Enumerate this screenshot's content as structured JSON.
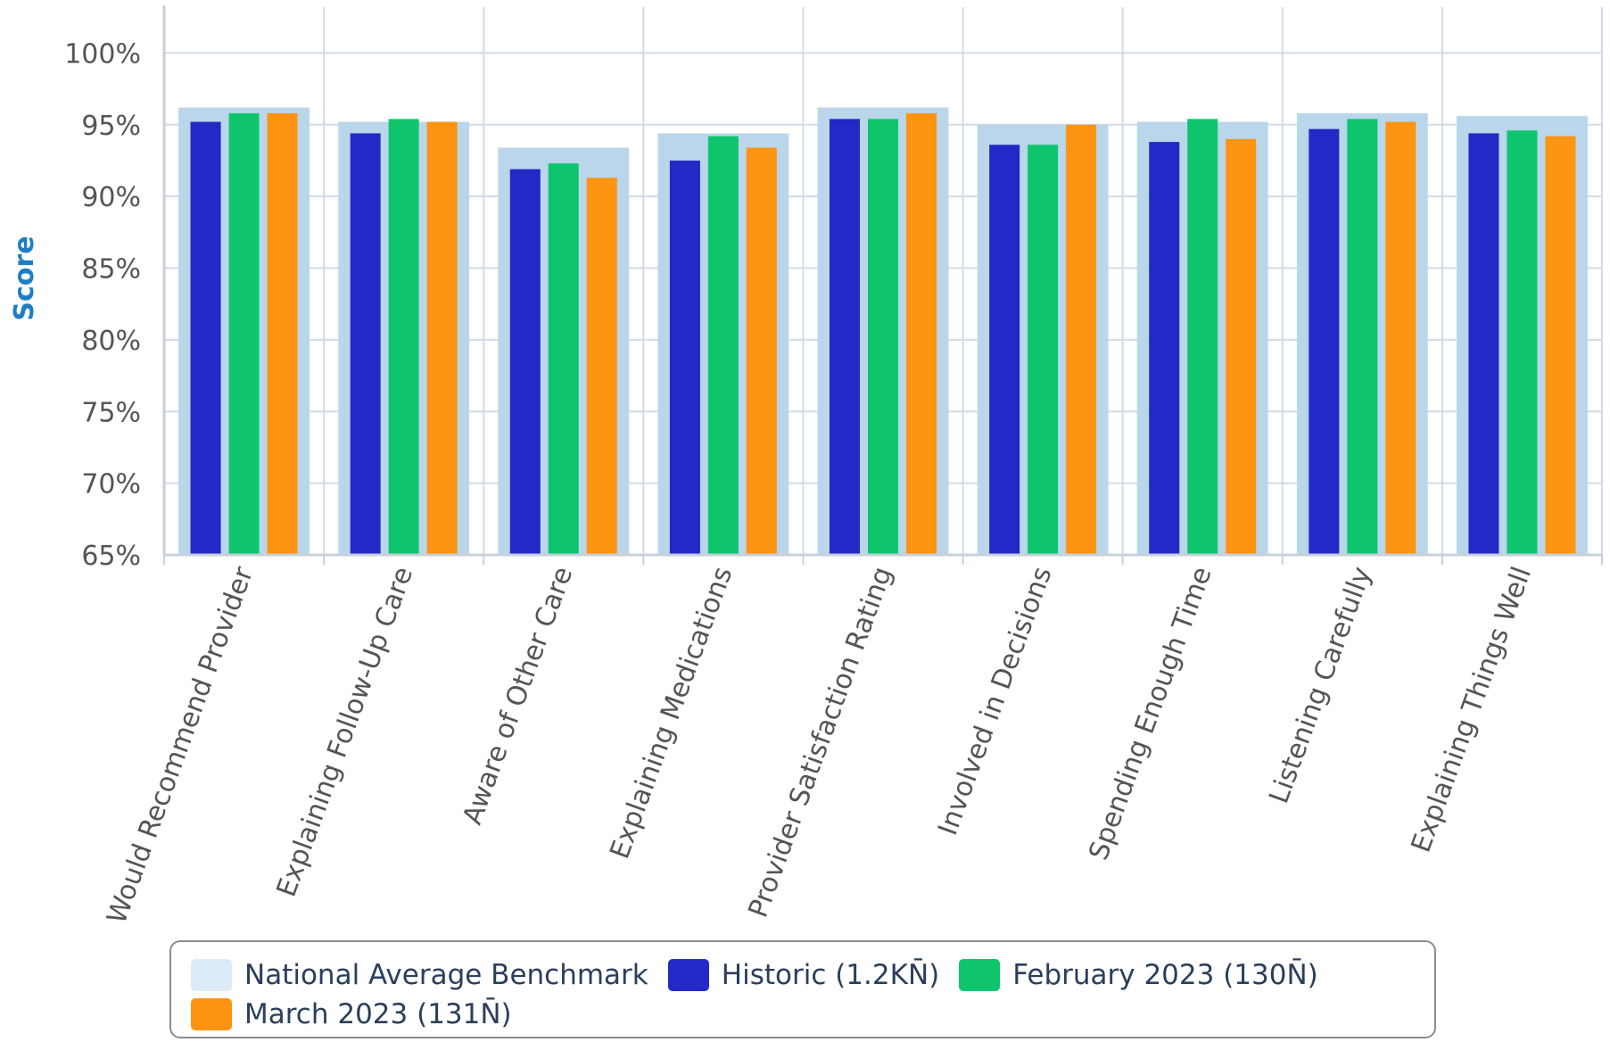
{
  "chart_data": {
    "type": "bar",
    "ylabel": "Score",
    "ylim": [
      65,
      100
    ],
    "y_ticks": [
      "65%",
      "70%",
      "75%",
      "80%",
      "85%",
      "90%",
      "95%",
      "100%"
    ],
    "grid": true,
    "legend_position": "bottom",
    "categories": [
      "Would Recommend Provider",
      "Explaining Follow-Up Care",
      "Aware of Other Care",
      "Explaining Medications",
      "Provider Satisfaction Rating",
      "Involved in Decisions",
      "Spending Enough Time",
      "Listening Carefully",
      "Explaining Things Well"
    ],
    "series": [
      {
        "name": "National Average Benchmark",
        "color": "#bad6ea",
        "values": [
          96.2,
          95.2,
          93.4,
          94.4,
          96.2,
          95.0,
          95.2,
          95.8,
          95.6
        ]
      },
      {
        "name": "Historic (1.2KN̄)",
        "color": "#2329c6",
        "values": [
          95.2,
          94.4,
          91.9,
          92.5,
          95.4,
          93.6,
          93.8,
          94.7,
          94.4
        ]
      },
      {
        "name": "February 2023 (130N̄)",
        "color": "#0ec56d",
        "values": [
          95.8,
          95.4,
          92.3,
          94.2,
          95.4,
          93.6,
          95.4,
          95.4,
          94.6
        ]
      },
      {
        "name": "March 2023 (131N̄)",
        "color": "#fd9412",
        "values": [
          95.8,
          95.2,
          91.3,
          93.4,
          95.8,
          95.0,
          94.0,
          95.2,
          94.2
        ]
      }
    ]
  }
}
